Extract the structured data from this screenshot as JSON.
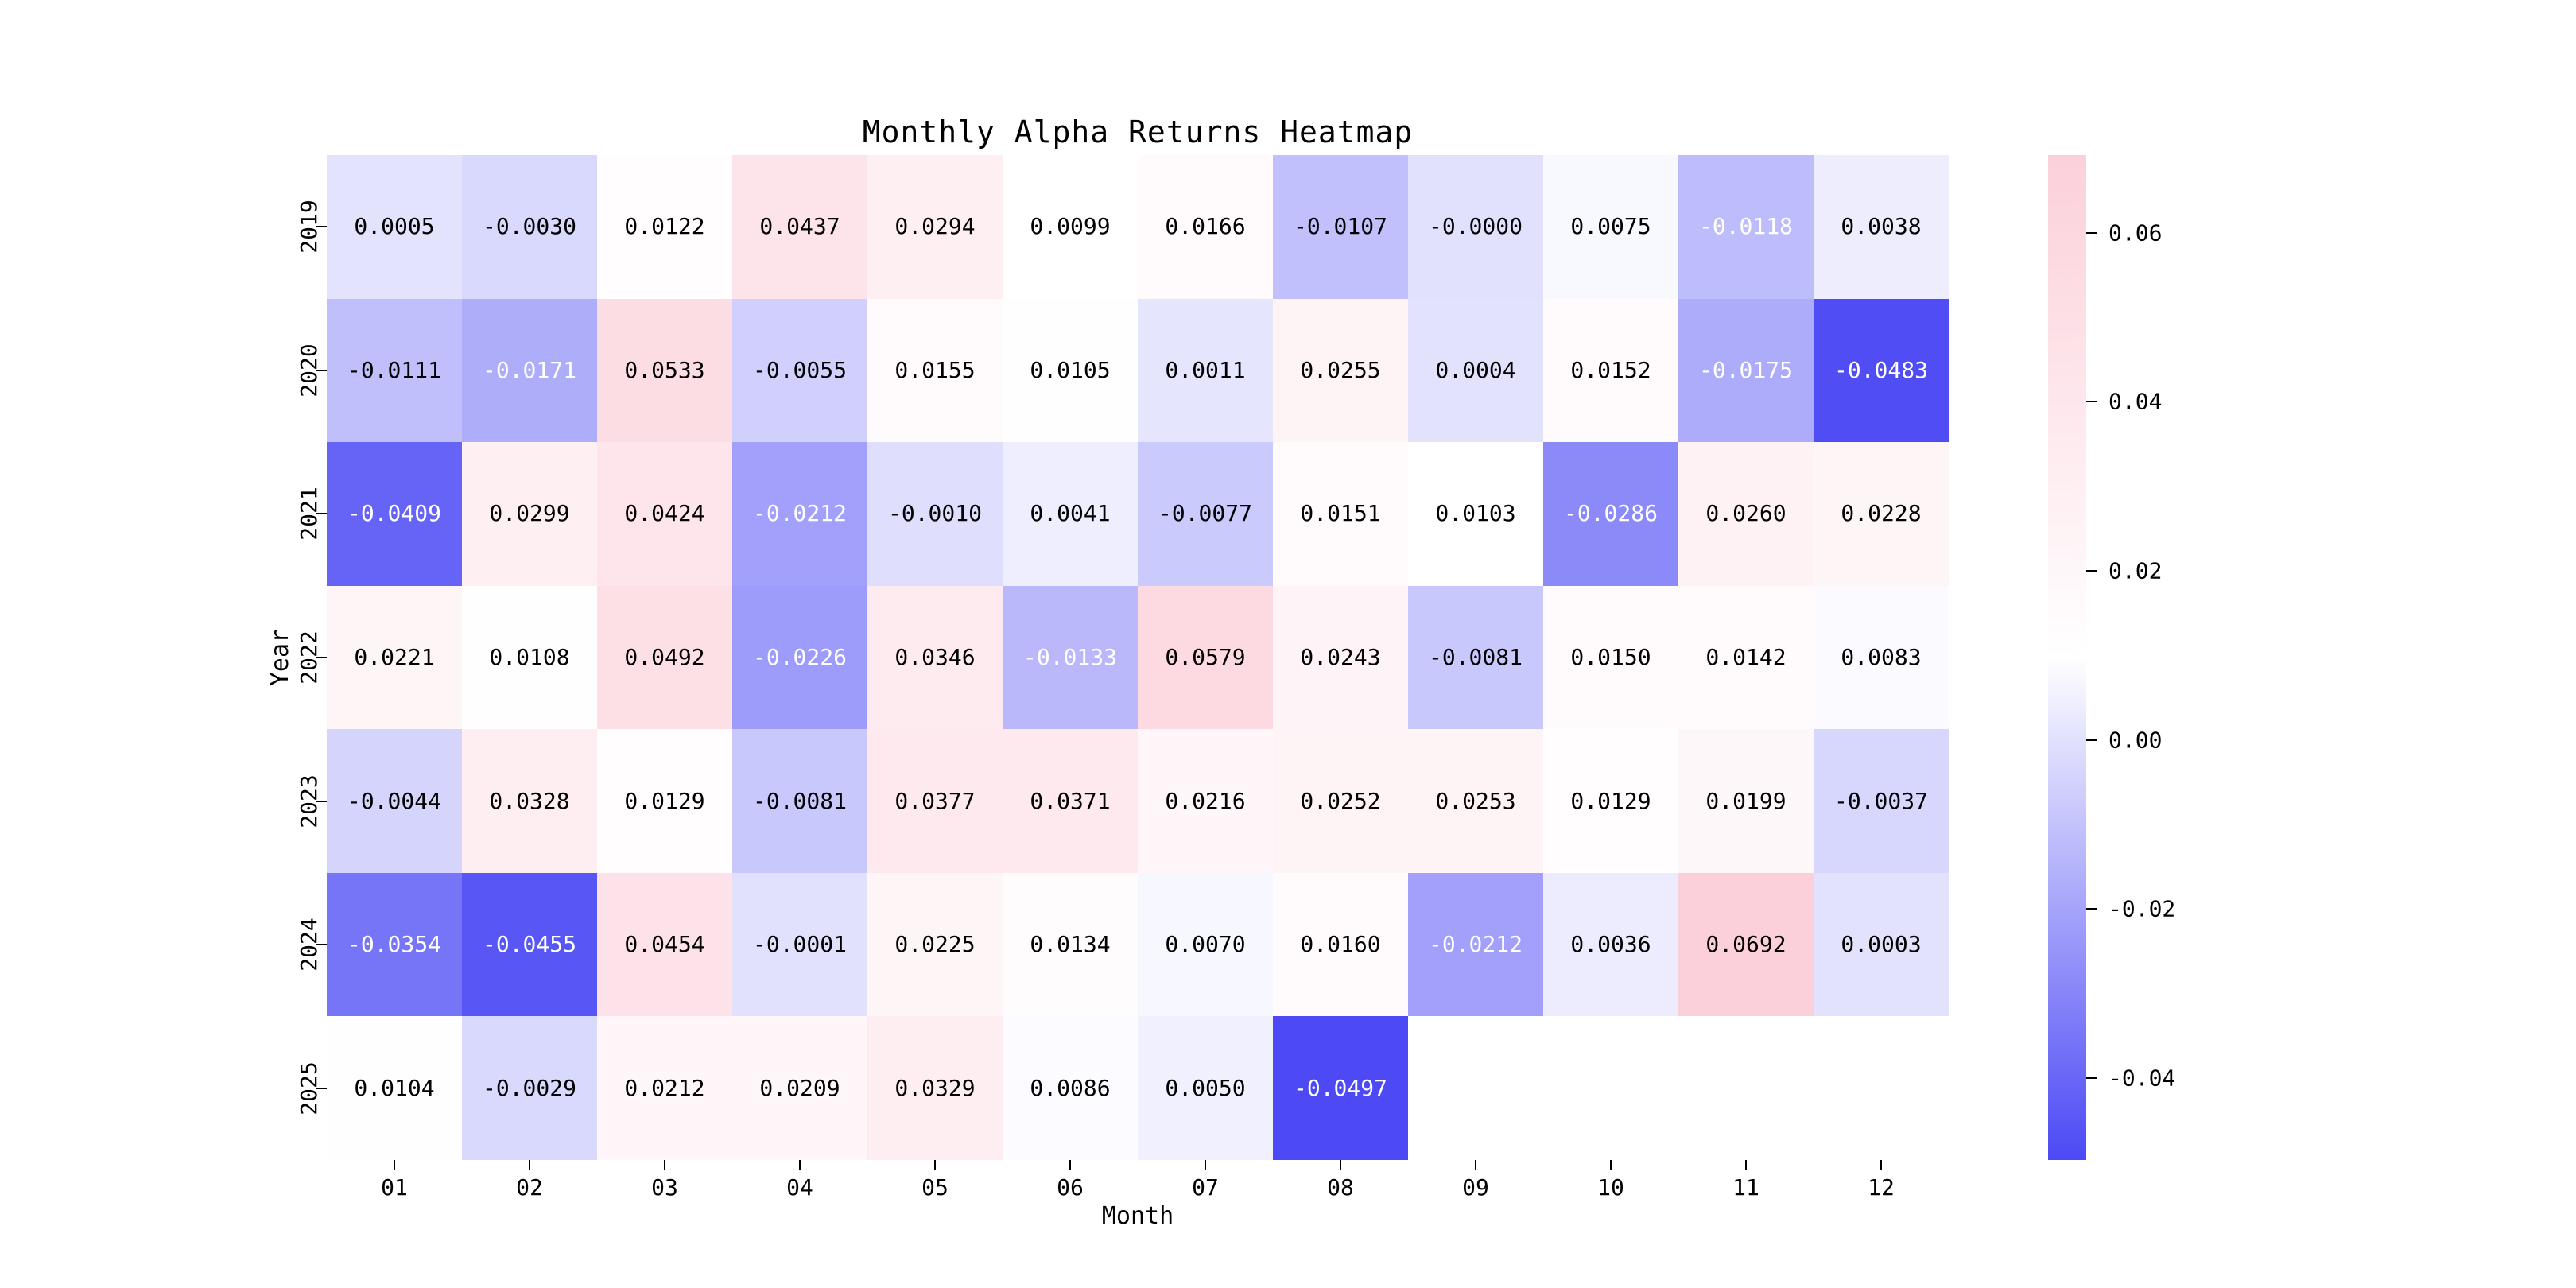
{
  "chart_data": {
    "type": "heatmap",
    "title": "Monthly Alpha Returns Heatmap",
    "xlabel": "Month",
    "ylabel": "Year",
    "x_ticks": [
      "01",
      "02",
      "03",
      "04",
      "05",
      "06",
      "07",
      "08",
      "09",
      "10",
      "11",
      "12"
    ],
    "y_ticks": [
      "2019",
      "2020",
      "2021",
      "2022",
      "2023",
      "2024",
      "2025"
    ],
    "vmin": -0.0497,
    "vmax": 0.0692,
    "colorbar_ticks": [
      "0.06",
      "0.04",
      "0.02",
      "0.00",
      "-0.02",
      "-0.04"
    ],
    "colors": {
      "negative_max": "#4C49F5",
      "center": "#FFFFFF",
      "positive_max": "#FCD0DA",
      "annotation_dark": "#000000",
      "annotation_light": "#FFFFFF",
      "background": "#FFFFFF"
    },
    "rows": [
      {
        "year": "2019",
        "values": [
          0.0005,
          -0.003,
          0.0122,
          0.0437,
          0.0294,
          0.0099,
          0.0166,
          -0.0107,
          -0.0,
          0.0075,
          -0.0118,
          0.0038
        ],
        "labels": [
          "0.0005",
          "-0.0030",
          "0.0122",
          "0.0437",
          "0.0294",
          "0.0099",
          "0.0166",
          "-0.0107",
          "-0.0000",
          "0.0075",
          "-0.0118",
          "0.0038"
        ]
      },
      {
        "year": "2020",
        "values": [
          -0.0111,
          -0.0171,
          0.0533,
          -0.0055,
          0.0155,
          0.0105,
          0.0011,
          0.0255,
          0.0004,
          0.0152,
          -0.0175,
          -0.0483
        ],
        "labels": [
          "-0.0111",
          "-0.0171",
          "0.0533",
          "-0.0055",
          "0.0155",
          "0.0105",
          "0.0011",
          "0.0255",
          "0.0004",
          "0.0152",
          "-0.0175",
          "-0.0483"
        ]
      },
      {
        "year": "2021",
        "values": [
          -0.0409,
          0.0299,
          0.0424,
          -0.0212,
          -0.001,
          0.0041,
          -0.0077,
          0.0151,
          0.0103,
          -0.0286,
          0.026,
          0.0228
        ],
        "labels": [
          "-0.0409",
          "0.0299",
          "0.0424",
          "-0.0212",
          "-0.0010",
          "0.0041",
          "-0.0077",
          "0.0151",
          "0.0103",
          "-0.0286",
          "0.0260",
          "0.0228"
        ]
      },
      {
        "year": "2022",
        "values": [
          0.0221,
          0.0108,
          0.0492,
          -0.0226,
          0.0346,
          -0.0133,
          0.0579,
          0.0243,
          -0.0081,
          0.015,
          0.0142,
          0.0083
        ],
        "labels": [
          "0.0221",
          "0.0108",
          "0.0492",
          "-0.0226",
          "0.0346",
          "-0.0133",
          "0.0579",
          "0.0243",
          "-0.0081",
          "0.0150",
          "0.0142",
          "0.0083"
        ]
      },
      {
        "year": "2023",
        "values": [
          -0.0044,
          0.0328,
          0.0129,
          -0.0081,
          0.0377,
          0.0371,
          0.0216,
          0.0252,
          0.0253,
          0.0129,
          0.0199,
          -0.0037
        ],
        "labels": [
          "-0.0044",
          "0.0328",
          "0.0129",
          "-0.0081",
          "0.0377",
          "0.0371",
          "0.0216",
          "0.0252",
          "0.0253",
          "0.0129",
          "0.0199",
          "-0.0037"
        ]
      },
      {
        "year": "2024",
        "values": [
          -0.0354,
          -0.0455,
          0.0454,
          -0.0001,
          0.0225,
          0.0134,
          0.007,
          0.016,
          -0.0212,
          0.0036,
          0.0692,
          0.0003
        ],
        "labels": [
          "-0.0354",
          "-0.0455",
          "0.0454",
          "-0.0001",
          "0.0225",
          "0.0134",
          "0.0070",
          "0.0160",
          "-0.0212",
          "0.0036",
          "0.0692",
          "0.0003"
        ]
      },
      {
        "year": "2025",
        "values": [
          0.0104,
          -0.0029,
          0.0212,
          0.0209,
          0.0329,
          0.0086,
          0.005,
          -0.0497,
          null,
          null,
          null,
          null
        ],
        "labels": [
          "0.0104",
          "-0.0029",
          "0.0212",
          "0.0209",
          "0.0329",
          "0.0086",
          "0.0050",
          "-0.0497",
          "",
          "",
          "",
          ""
        ]
      }
    ],
    "legend_position": "right",
    "grid": false
  }
}
